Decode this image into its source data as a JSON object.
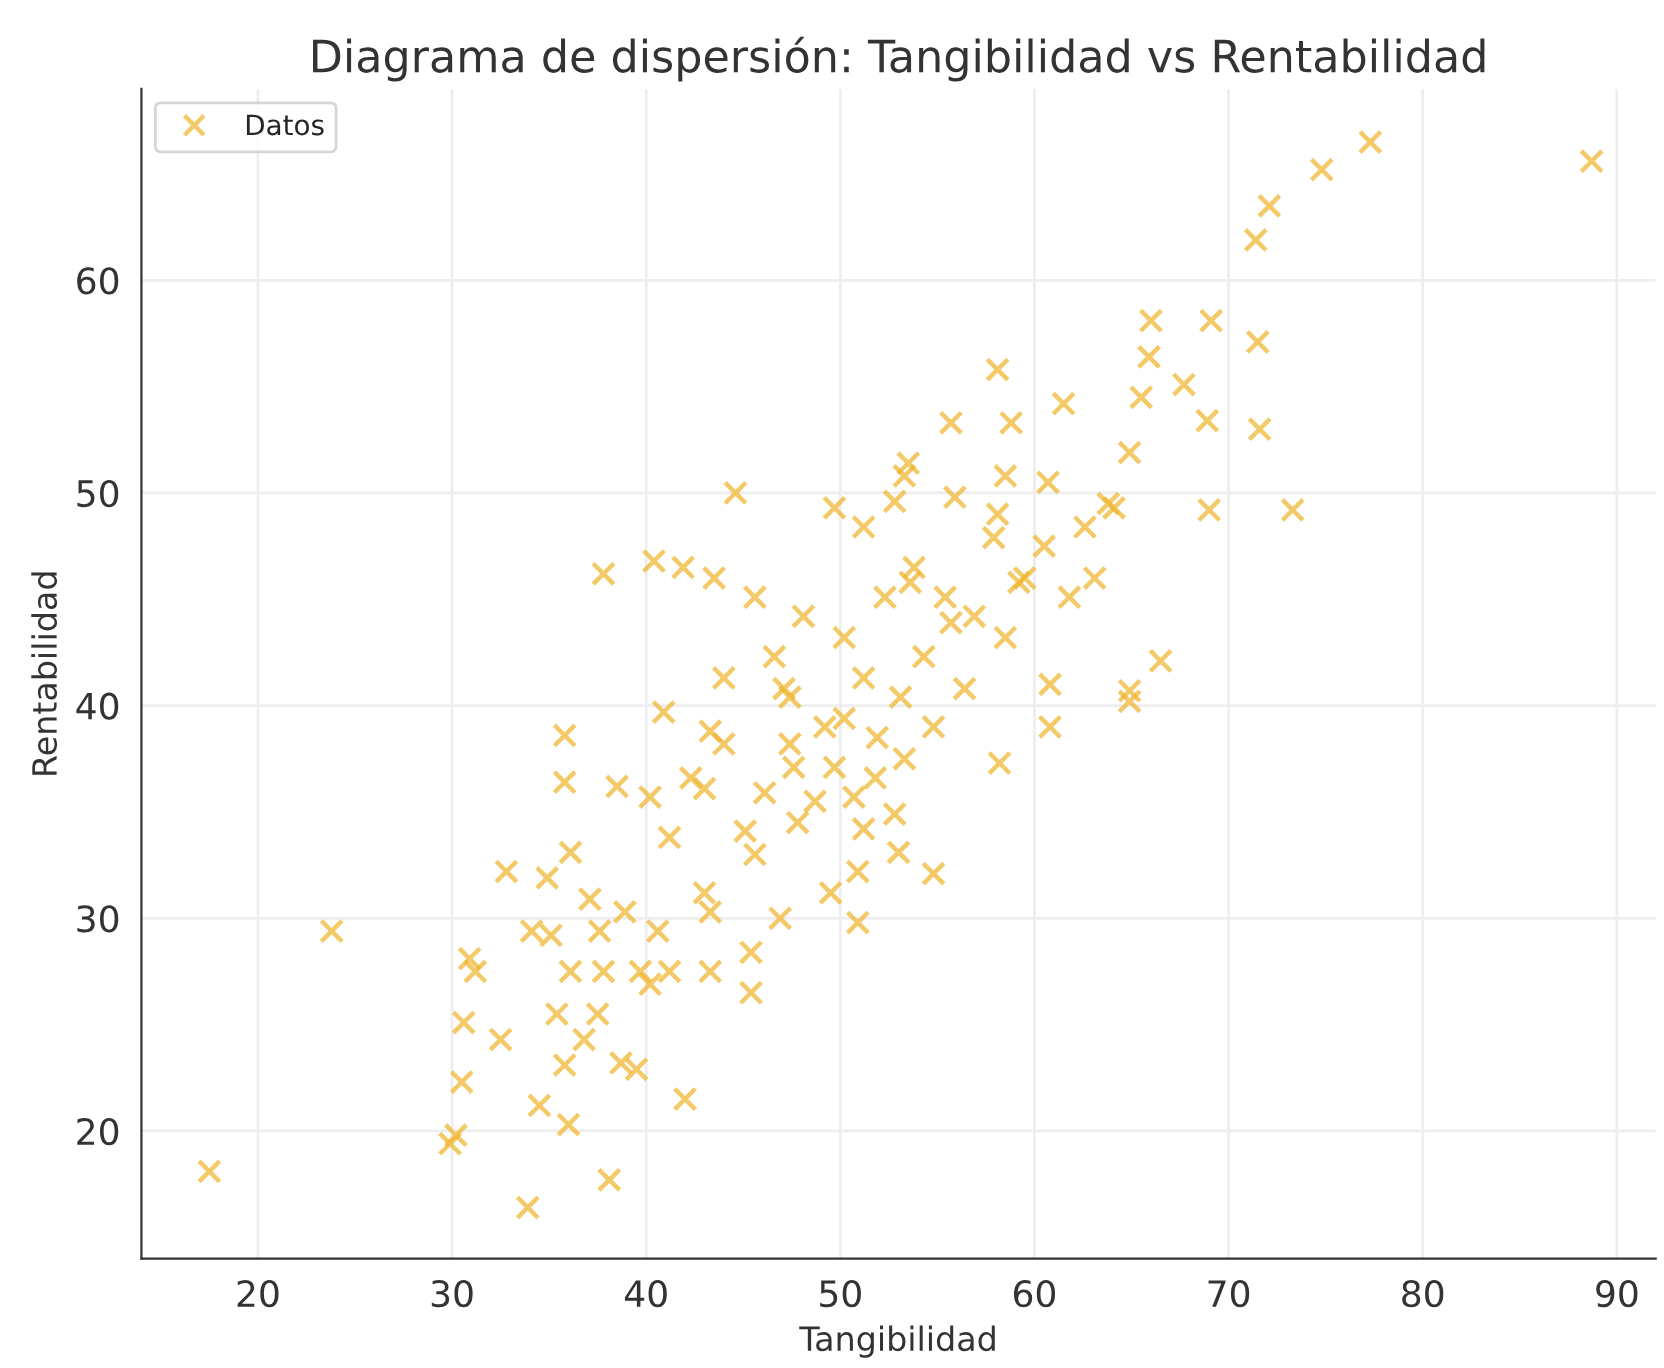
{
  "chart_data": {
    "type": "scatter",
    "title": "Diagrama de dispersión: Tangibilidad vs Rentabilidad",
    "xlabel": "Tangibilidad",
    "ylabel": "Rentabilidad",
    "xlim": [
      14,
      92
    ],
    "ylim": [
      14,
      69
    ],
    "xticks": [
      20,
      30,
      40,
      50,
      60,
      70,
      80,
      90
    ],
    "yticks": [
      20,
      30,
      40,
      50,
      60
    ],
    "grid": true,
    "legend": "top left",
    "marker": "cross",
    "series": [
      {
        "name": "Datos",
        "color": "#f0b429",
        "x": [
          17.5,
          23.8,
          29.9,
          30.2,
          30.5,
          30.6,
          30.9,
          31.2,
          32.5,
          32.8,
          33.9,
          34.1,
          34.5,
          34.9,
          35.1,
          35.4,
          35.8,
          35.8,
          35.8,
          36.0,
          36.1,
          36.1,
          36.8,
          37.1,
          37.5,
          37.6,
          37.8,
          38.1,
          38.5,
          38.7,
          38.9,
          39.5,
          39.7,
          40.2,
          40.2,
          40.6,
          40.9,
          41.2,
          42.0,
          43.0,
          43.3,
          43.3,
          44.0,
          45.1,
          45.4,
          45.4,
          45.6,
          46.9,
          47.4,
          47.8,
          48.7,
          49.5,
          50.7,
          50.9,
          50.9,
          51.2,
          51.9,
          41.2,
          42.3,
          46.1,
          43.3,
          47.4,
          50.2,
          88.7,
          77.3,
          74.8,
          72.1,
          71.4,
          66.0,
          69.1,
          65.9,
          71.5,
          58.1,
          67.7,
          65.5,
          61.5,
          55.7,
          58.8,
          68.9,
          71.6,
          64.9,
          53.5,
          58.5,
          60.7,
          69.0,
          73.3,
          63.8,
          58.1,
          52.8,
          61.8,
          66.5,
          64.9,
          60.8,
          59.2,
          55.7,
          53.6,
          54.8,
          60.8,
          58.2,
          64.9,
          53.0,
          52.8,
          44.6,
          40.4,
          41.9,
          43.5,
          37.8,
          49.7,
          51.2,
          53.3,
          53.8,
          55.4,
          52.3,
          50.2,
          48.1,
          46.6,
          54.3,
          56.4,
          53.1,
          51.2,
          49.2,
          47.1,
          45.6,
          44.0,
          57.9,
          59.5,
          60.5,
          62.6,
          63.1,
          56.9,
          58.5,
          54.8,
          53.3,
          51.8,
          49.7,
          64.1,
          55.9,
          43.0,
          47.6
        ],
        "values": [
          18.1,
          29.4,
          19.4,
          19.8,
          22.3,
          25.1,
          28.1,
          27.5,
          24.3,
          32.2,
          16.4,
          29.4,
          21.2,
          31.9,
          29.2,
          25.5,
          23.1,
          36.4,
          38.6,
          20.3,
          33.1,
          27.5,
          24.3,
          30.9,
          25.5,
          29.4,
          27.5,
          17.7,
          36.2,
          23.2,
          30.3,
          22.9,
          27.5,
          35.7,
          26.9,
          29.4,
          39.7,
          27.5,
          21.5,
          31.2,
          30.3,
          27.5,
          38.2,
          34.1,
          28.4,
          26.5,
          33.0,
          30.0,
          38.2,
          34.5,
          35.5,
          31.2,
          35.7,
          32.2,
          29.8,
          34.2,
          38.5,
          33.8,
          36.6,
          35.9,
          38.8,
          40.4,
          39.4,
          65.6,
          66.5,
          65.2,
          63.5,
          61.9,
          58.1,
          58.1,
          56.4,
          57.1,
          55.8,
          55.1,
          54.5,
          54.2,
          53.3,
          53.3,
          53.4,
          53.0,
          51.9,
          51.4,
          50.8,
          50.5,
          49.2,
          49.2,
          49.5,
          49.0,
          49.6,
          45.1,
          42.1,
          40.7,
          41.0,
          45.8,
          43.9,
          45.8,
          32.1,
          39.0,
          37.3,
          40.2,
          33.1,
          34.9,
          50.0,
          46.8,
          46.5,
          46.0,
          46.2,
          49.3,
          48.4,
          50.8,
          46.5,
          45.1,
          45.1,
          43.2,
          44.2,
          42.3,
          42.3,
          40.8,
          40.4,
          41.3,
          39.0,
          40.8,
          45.1,
          41.3,
          47.9,
          46.0,
          47.5,
          48.4,
          46.0,
          44.2,
          43.2,
          39.0,
          37.5,
          36.6,
          37.1,
          49.3,
          49.8,
          36.1,
          37.1
        ]
      }
    ]
  }
}
